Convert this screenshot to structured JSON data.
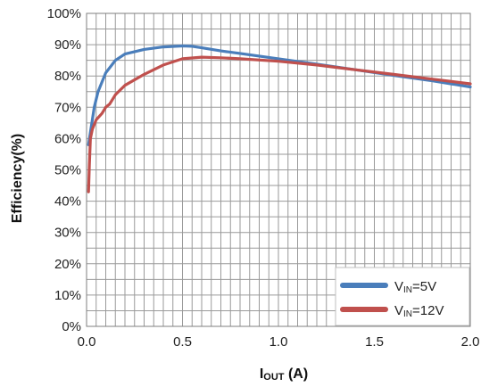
{
  "chart_data": {
    "type": "line",
    "title": "",
    "xlabel": {
      "main": "I",
      "sub": "OUT",
      "unit": " (A)"
    },
    "ylabel": "Efficiency(%)",
    "xlim": [
      0,
      2.0
    ],
    "ylim": [
      0,
      100
    ],
    "x_ticks": [
      "0.0",
      "0.5",
      "1.0",
      "1.5",
      "2.0"
    ],
    "y_ticks": [
      "0%",
      "10%",
      "20%",
      "30%",
      "40%",
      "50%",
      "60%",
      "70%",
      "80%",
      "90%",
      "100%"
    ],
    "grid": true,
    "legend_position": "bottom-right",
    "series": [
      {
        "name": "VIN=5V",
        "legend": {
          "prefix": "V",
          "sub": "IN",
          "suffix": "=5V"
        },
        "color": "#4a7ebb",
        "x": [
          0.01,
          0.02,
          0.03,
          0.04,
          0.06,
          0.08,
          0.1,
          0.15,
          0.2,
          0.3,
          0.4,
          0.5,
          0.55,
          0.6,
          0.7,
          0.8,
          1.0,
          1.2,
          1.4,
          1.6,
          1.8,
          2.0
        ],
        "y": [
          58,
          62,
          66,
          70,
          75,
          78,
          81,
          85,
          87,
          88.5,
          89.3,
          89.6,
          89.5,
          89,
          88,
          87.2,
          85.5,
          83.8,
          82,
          80.2,
          78.5,
          76.5
        ]
      },
      {
        "name": "VIN=12V",
        "legend": {
          "prefix": "V",
          "sub": "IN",
          "suffix": "=12V"
        },
        "color": "#c0504d",
        "x": [
          0.01,
          0.015,
          0.02,
          0.03,
          0.05,
          0.08,
          0.1,
          0.12,
          0.15,
          0.2,
          0.3,
          0.4,
          0.5,
          0.6,
          0.7,
          0.8,
          1.0,
          1.2,
          1.4,
          1.6,
          1.8,
          2.0
        ],
        "y": [
          43,
          52,
          60,
          63,
          66,
          68,
          70,
          71,
          74,
          77,
          80.5,
          83.5,
          85.5,
          86,
          85.8,
          85.5,
          84.7,
          83.5,
          82,
          80.5,
          79,
          77.5
        ]
      }
    ]
  }
}
